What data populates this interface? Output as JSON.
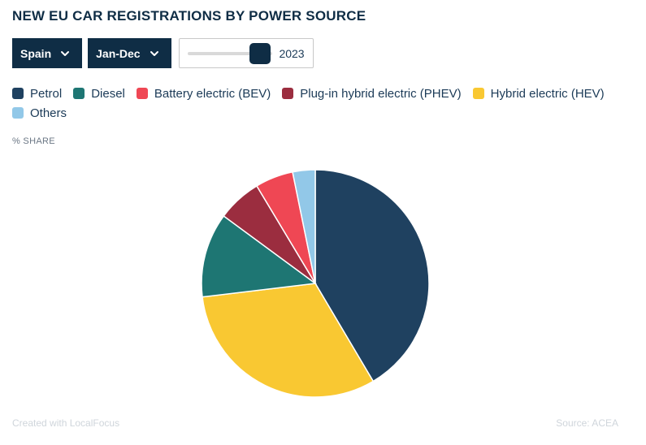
{
  "title": "NEW EU CAR REGISTRATIONS BY POWER SOURCE",
  "controls": {
    "country": "Spain",
    "period": "Jan-Dec",
    "year": "2023",
    "year_slider_fraction": 0.85
  },
  "unit_label": "% SHARE",
  "icons": {
    "dropdown": "chevron-down-icon"
  },
  "chart_data": {
    "type": "pie",
    "title": "NEW EU CAR REGISTRATIONS BY POWER SOURCE",
    "legend_placement": "top",
    "slices": [
      {
        "name": "Petrol",
        "value": 41.5,
        "color": "#1f4160"
      },
      {
        "name": "Hybrid electric (HEV)",
        "value": 31.6,
        "color": "#f9c832"
      },
      {
        "name": "Diesel",
        "value": 12.0,
        "color": "#1e7673"
      },
      {
        "name": "Plug-in hybrid electric (PHEV)",
        "value": 6.3,
        "color": "#9b2d3f"
      },
      {
        "name": "Battery electric (BEV)",
        "value": 5.4,
        "color": "#ef4754"
      },
      {
        "name": "Others",
        "value": 3.2,
        "color": "#92c8e8"
      }
    ],
    "legend": [
      {
        "name": "Petrol",
        "color": "#1f4160"
      },
      {
        "name": "Diesel",
        "color": "#1e7673"
      },
      {
        "name": "Battery electric (BEV)",
        "color": "#ef4754"
      },
      {
        "name": "Plug-in hybrid electric (PHEV)",
        "color": "#9b2d3f"
      },
      {
        "name": "Hybrid electric (HEV)",
        "color": "#f9c832"
      },
      {
        "name": "Others",
        "color": "#92c8e8"
      }
    ]
  },
  "footer": {
    "credit": "Created with LocalFocus",
    "source": "Source:  ACEA"
  }
}
